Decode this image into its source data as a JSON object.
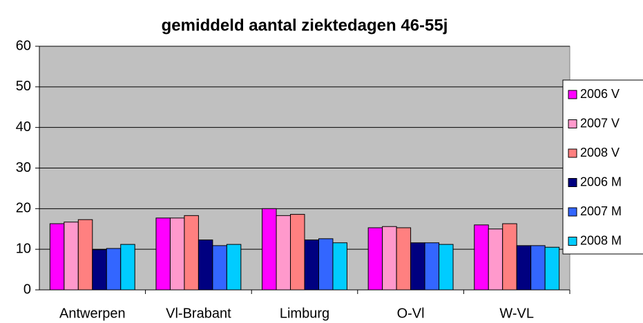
{
  "chart_data": {
    "type": "bar",
    "title": "gemiddeld aantal ziektedagen 46-55j",
    "categories": [
      "Antwerpen",
      "Vl-Brabant",
      "Limburg",
      "O-Vl",
      "W-VL"
    ],
    "series": [
      {
        "name": "2006 V",
        "color": "#ff00ff",
        "values": [
          16.3,
          17.7,
          20.0,
          15.3,
          16.0
        ]
      },
      {
        "name": "2007 V",
        "color": "#ff99cc",
        "values": [
          16.7,
          17.7,
          18.3,
          15.6,
          15.0
        ]
      },
      {
        "name": "2008 V",
        "color": "#ff8080",
        "values": [
          17.3,
          18.3,
          18.6,
          15.3,
          16.3
        ]
      },
      {
        "name": "2006 M",
        "color": "#000080",
        "values": [
          9.9,
          12.3,
          12.3,
          11.6,
          10.9
        ]
      },
      {
        "name": "2007 M",
        "color": "#3366ff",
        "values": [
          10.2,
          10.9,
          12.6,
          11.6,
          10.9
        ]
      },
      {
        "name": "2008 M",
        "color": "#00ccff",
        "values": [
          11.2,
          11.2,
          11.6,
          11.2,
          10.5
        ]
      }
    ],
    "ylim": [
      0,
      60
    ],
    "yticks": [
      0,
      10,
      20,
      30,
      40,
      50,
      60
    ],
    "grid": true,
    "legend": "right"
  }
}
